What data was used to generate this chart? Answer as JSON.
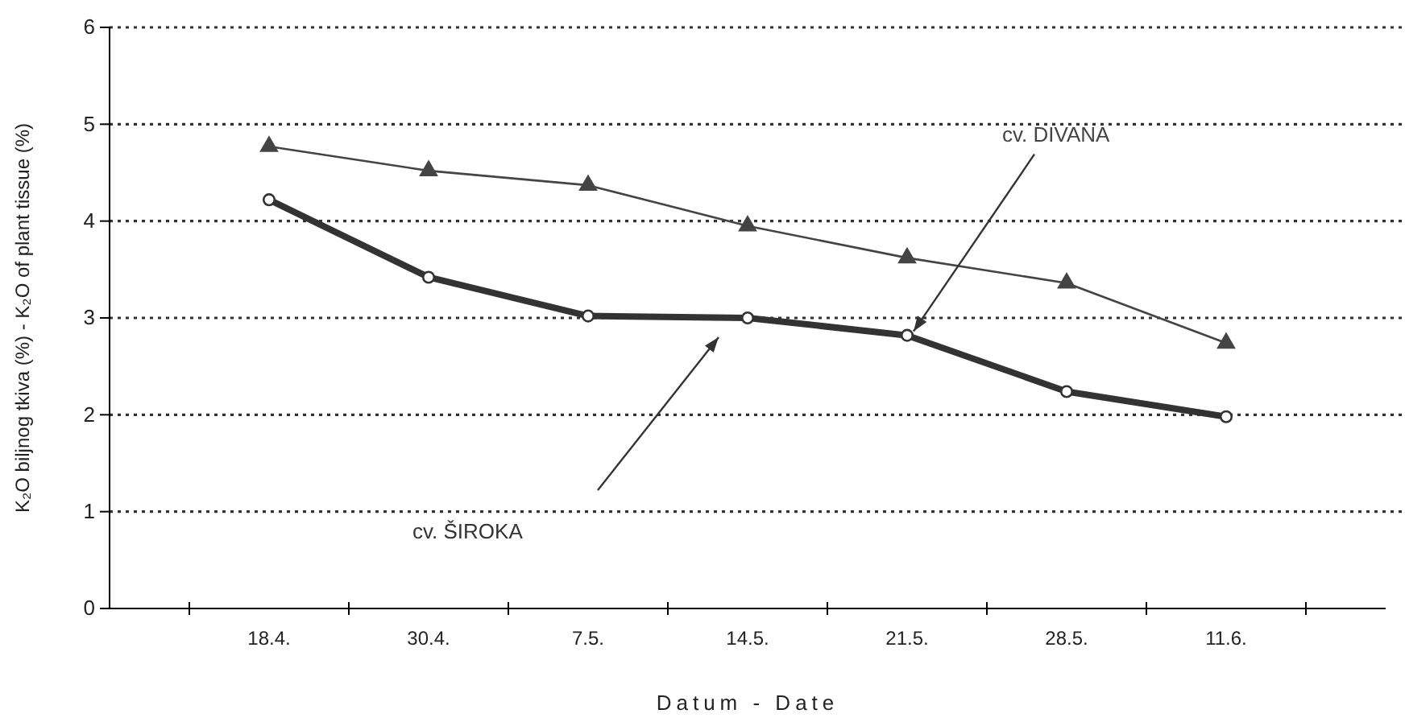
{
  "chart_data": {
    "type": "line",
    "xlabel": "Datum - Date",
    "ylabel": "K₂O biljnog tkiva (%) - K₂O of plant tissue (%)",
    "categories": [
      "18.4.",
      "30.4.",
      "7.5.",
      "14.5.",
      "21.5.",
      "28.5.",
      "11.6."
    ],
    "ylim": [
      0,
      6
    ],
    "yticks": [
      0,
      1,
      2,
      3,
      4,
      5,
      6
    ],
    "grid": "y",
    "legend": false,
    "series": [
      {
        "name": "cv. DIVANA",
        "color": "#444444",
        "marker": "triangle",
        "values": [
          4.77,
          4.52,
          4.37,
          3.95,
          3.62,
          3.36,
          2.74
        ]
      },
      {
        "name": "cv. ŠIROKA",
        "color": "#333333",
        "marker": "circle",
        "values": [
          4.22,
          3.42,
          3.02,
          3.0,
          2.82,
          2.24,
          1.98
        ]
      }
    ]
  }
}
